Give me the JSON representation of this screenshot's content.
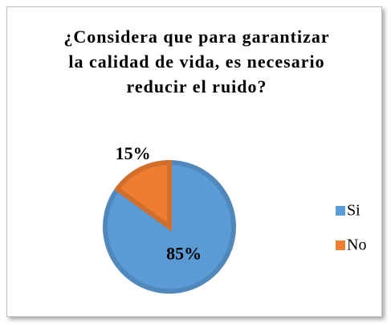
{
  "chart_data": {
    "type": "pie",
    "title": "¿Considera que para garantizar la calidad de vida, es necesario reducir el ruido?",
    "categories": [
      "Si",
      "No"
    ],
    "values": [
      85,
      15
    ],
    "value_labels": [
      "85%",
      "15%"
    ],
    "colors": [
      "#5b9bd5",
      "#ed7d31"
    ],
    "legend": "right"
  }
}
